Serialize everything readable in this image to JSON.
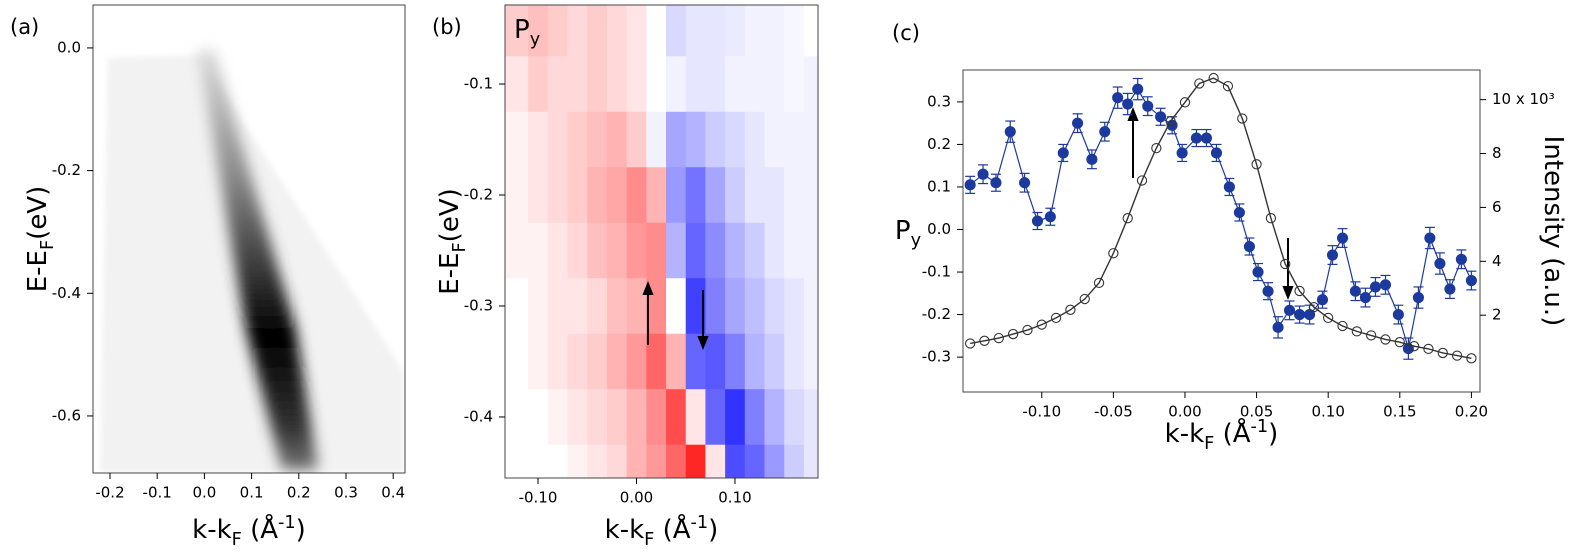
{
  "chart_data": [
    {
      "type": "image",
      "panel_label": "(a)",
      "xlabel": [
        "k-k",
        "F",
        " (Å",
        "-1",
        ")"
      ],
      "ylabel": [
        "E-E",
        "F",
        "(eV)"
      ],
      "xlim": [
        -0.236,
        0.425
      ],
      "xticks": [
        -0.2,
        -0.1,
        {
          "value": 0,
          "label": "0.0"
        },
        0.1,
        0.2,
        0.3,
        0.4
      ],
      "ylim": [
        -0.693,
        0.07
      ],
      "yticks": [
        {
          "value": 0,
          "label": "0.0"
        },
        -0.2,
        -0.4,
        -0.6
      ]
    },
    {
      "type": "heatmap",
      "panel_label": "(b)",
      "inset_label": [
        "P",
        "y"
      ],
      "xlabel": [
        "k-k",
        "F",
        " (Å",
        "-1",
        ")"
      ],
      "ylabel": [
        "E-E",
        "F",
        "(eV)"
      ],
      "xlim": [
        -0.1335,
        0.1843
      ],
      "xticks": [
        {
          "value": -0.1,
          "label": "-0.10"
        },
        {
          "value": 0,
          "label": "0.00"
        },
        {
          "value": 0.1,
          "label": "0.10"
        }
      ],
      "ylim": [
        -0.455,
        -0.0288
      ],
      "yticks": [
        -0.1,
        -0.2,
        -0.3,
        -0.4
      ],
      "clim": [
        -1,
        1
      ],
      "xbins": [
        -0.1335,
        -0.11,
        -0.09,
        -0.07,
        -0.05,
        -0.03,
        -0.01,
        0.01,
        0.03,
        0.05,
        0.07,
        0.09,
        0.11,
        0.13,
        0.15,
        0.17,
        0.1843
      ],
      "ybins": [
        -0.0288,
        -0.075,
        -0.125,
        -0.175,
        -0.225,
        -0.275,
        -0.325,
        -0.375,
        -0.425,
        -0.455
      ],
      "values": [
        [
          0.2,
          0.25,
          0.2,
          0.15,
          0.2,
          0.15,
          0.1,
          0,
          -0.15,
          -0.1,
          -0.1,
          -0.08,
          -0.05,
          -0.05,
          -0.03,
          0
        ],
        [
          0.1,
          0.2,
          0.15,
          0.15,
          0.2,
          0.15,
          0.1,
          0,
          -0.05,
          -0.1,
          -0.1,
          -0.05,
          -0.05,
          -0.05,
          -0.03,
          -0.05
        ],
        [
          0.05,
          0.1,
          0.15,
          0.2,
          0.25,
          0.3,
          0.2,
          -0.05,
          -0.35,
          -0.3,
          -0.2,
          -0.15,
          -0.1,
          -0.05,
          -0.05,
          -0.05
        ],
        [
          0.05,
          0.1,
          0.15,
          0.2,
          0.3,
          0.35,
          0.45,
          0.3,
          -0.4,
          -0.55,
          -0.35,
          -0.2,
          -0.1,
          -0.1,
          -0.05,
          -0.05
        ],
        [
          0.05,
          0.05,
          0.1,
          0.15,
          0.25,
          0.3,
          0.4,
          0.45,
          -0.3,
          -0.6,
          -0.45,
          -0.3,
          -0.2,
          -0.1,
          -0.05,
          -0.05
        ],
        [
          0,
          0.05,
          0.1,
          0.1,
          0.15,
          0.25,
          0.3,
          0.45,
          0,
          -0.75,
          -0.5,
          -0.35,
          -0.25,
          -0.15,
          -0.1,
          -0.05
        ],
        [
          0,
          0.05,
          0.1,
          0.15,
          0.2,
          0.3,
          0.4,
          0.6,
          0.3,
          -0.6,
          -0.65,
          -0.5,
          -0.3,
          -0.2,
          -0.1,
          -0.05
        ],
        [
          0,
          0,
          0.05,
          0.1,
          0.15,
          0.2,
          0.3,
          0.45,
          0.7,
          0.1,
          -0.6,
          -0.8,
          -0.5,
          -0.3,
          -0.15,
          -0.1
        ],
        [
          0,
          0,
          0,
          0.05,
          0.1,
          0.15,
          0.3,
          0.4,
          0.6,
          0.85,
          0.1,
          -0.7,
          -0.6,
          -0.4,
          -0.2,
          -0.1
        ]
      ]
    },
    {
      "type": "line",
      "panel_label": "(c)",
      "xlabel": [
        "k-k",
        "F",
        " (Å",
        "-1",
        ")"
      ],
      "ylabel": [
        "P",
        "y"
      ],
      "y2label": "Intensity (a.u.)",
      "xlim": [
        -0.155,
        0.206
      ],
      "xticks": [
        {
          "value": -0.1,
          "label": "-0.10"
        },
        -0.05,
        {
          "value": 0,
          "label": "0.00"
        },
        0.05,
        {
          "value": 0.1,
          "label": "0.10"
        },
        0.15,
        {
          "value": 0.2,
          "label": "0.20"
        }
      ],
      "ylim": [
        -0.382,
        0.375
      ],
      "yticks": [
        0.3,
        0.2,
        0.1,
        {
          "value": 0,
          "label": "0.0"
        },
        -0.1,
        -0.2,
        -0.3
      ],
      "y2lim": [
        -0.85,
        11.1
      ],
      "y2ticks": [
        {
          "value": 10,
          "label": "10 x 10³"
        },
        8,
        6,
        4,
        2
      ],
      "series": [
        {
          "color": "#1c3a9e",
          "marker": "filled",
          "x": [
            -0.15,
            -0.141,
            -0.132,
            -0.122,
            -0.112,
            -0.103,
            -0.094,
            -0.085,
            -0.075,
            -0.065,
            -0.056,
            -0.047,
            -0.04,
            -0.033,
            -0.026,
            -0.017,
            -0.009,
            -0.002,
            0.008,
            0.015,
            0.022,
            0.031,
            0.038,
            0.045,
            0.051,
            0.058,
            0.065,
            0.073,
            0.08,
            0.087,
            0.096,
            0.103,
            0.11,
            0.119,
            0.126,
            0.133,
            0.14,
            0.149,
            0.156,
            0.163,
            0.171,
            0.178,
            0.185,
            0.193,
            0.2
          ],
          "values": [
            0.105,
            0.13,
            0.11,
            0.23,
            0.11,
            0.02,
            0.03,
            0.18,
            0.25,
            0.165,
            0.23,
            0.31,
            0.295,
            0.33,
            0.29,
            0.265,
            0.245,
            0.18,
            0.215,
            0.215,
            0.18,
            0.1,
            0.04,
            -0.04,
            -0.1,
            -0.145,
            -0.23,
            -0.19,
            -0.2,
            -0.2,
            -0.165,
            -0.06,
            -0.02,
            -0.145,
            -0.16,
            -0.135,
            -0.13,
            -0.2,
            -0.28,
            -0.16,
            -0.02,
            -0.08,
            -0.14,
            -0.07,
            -0.12
          ],
          "errors": [
            0.02,
            0.022,
            0.02,
            0.025,
            0.022,
            0.02,
            0.02,
            0.02,
            0.022,
            0.022,
            0.022,
            0.025,
            0.025,
            0.025,
            0.022,
            0.02,
            0.02,
            0.02,
            0.02,
            0.02,
            0.02,
            0.02,
            0.02,
            0.02,
            0.02,
            0.02,
            0.025,
            0.022,
            0.02,
            0.022,
            0.02,
            0.022,
            0.022,
            0.022,
            0.022,
            0.022,
            0.022,
            0.022,
            0.025,
            0.025,
            0.025,
            0.025,
            0.022,
            0.022,
            0.022
          ]
        },
        {
          "color": "#333333",
          "marker": "open",
          "axis": "y2",
          "x": [
            -0.15,
            -0.14,
            -0.13,
            -0.12,
            -0.11,
            -0.1,
            -0.09,
            -0.08,
            -0.07,
            -0.06,
            -0.05,
            -0.04,
            -0.03,
            -0.02,
            -0.01,
            0.0,
            0.01,
            0.02,
            0.03,
            0.04,
            0.05,
            0.06,
            0.07,
            0.08,
            0.09,
            0.1,
            0.11,
            0.12,
            0.13,
            0.14,
            0.15,
            0.16,
            0.17,
            0.18,
            0.19,
            0.2
          ],
          "values": [
            0.95,
            1.05,
            1.15,
            1.3,
            1.45,
            1.65,
            1.9,
            2.2,
            2.6,
            3.2,
            4.3,
            5.6,
            7.0,
            8.2,
            9.2,
            9.9,
            10.6,
            10.8,
            10.5,
            9.3,
            7.6,
            5.6,
            3.9,
            2.9,
            2.3,
            1.9,
            1.6,
            1.4,
            1.25,
            1.1,
            1.0,
            0.85,
            0.75,
            0.6,
            0.5,
            0.4
          ]
        }
      ]
    }
  ]
}
